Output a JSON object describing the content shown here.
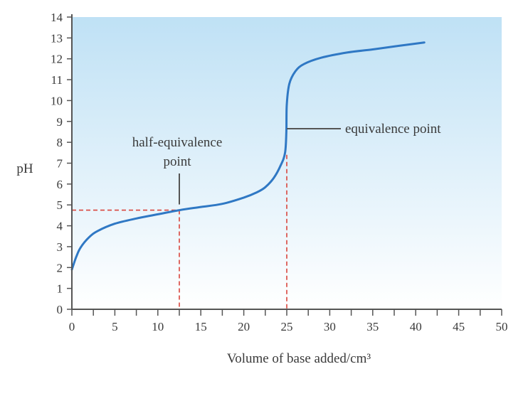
{
  "chart_data": {
    "type": "line",
    "xlabel": "Volume of base added/cm³",
    "ylabel": "pH",
    "xlim": [
      0,
      50
    ],
    "ylim": [
      0,
      14
    ],
    "x_ticks": [
      0,
      5,
      10,
      15,
      20,
      25,
      30,
      35,
      40,
      45,
      50
    ],
    "y_ticks": [
      0,
      1,
      2,
      3,
      4,
      5,
      6,
      7,
      8,
      9,
      10,
      11,
      12,
      13,
      14
    ],
    "series": [
      {
        "points": [
          [
            0,
            1.9
          ],
          [
            0.5,
            2.5
          ],
          [
            1,
            2.95
          ],
          [
            2,
            3.45
          ],
          [
            3,
            3.75
          ],
          [
            5,
            4.1
          ],
          [
            7.5,
            4.35
          ],
          [
            10,
            4.55
          ],
          [
            12.5,
            4.75
          ],
          [
            15,
            4.9
          ],
          [
            17.5,
            5.05
          ],
          [
            20,
            5.35
          ],
          [
            21.5,
            5.6
          ],
          [
            22.5,
            5.85
          ],
          [
            23.5,
            6.3
          ],
          [
            24.3,
            6.9
          ],
          [
            24.8,
            7.5
          ],
          [
            24.95,
            8.5
          ],
          [
            25,
            9.8
          ],
          [
            25.3,
            10.8
          ],
          [
            26,
            11.4
          ],
          [
            27,
            11.75
          ],
          [
            29,
            12.05
          ],
          [
            32,
            12.3
          ],
          [
            35,
            12.45
          ],
          [
            38,
            12.62
          ],
          [
            41,
            12.78
          ]
        ],
        "color": "#2f78c4"
      }
    ],
    "half_equivalence": {
      "x": 12.5,
      "y": 4.75
    },
    "equivalence": {
      "x": 25,
      "y": 7.4
    },
    "annotations": {
      "half_equivalence_line1": "half-equivalence",
      "half_equivalence_line2": "point",
      "equivalence": "equivalence point"
    },
    "colors": {
      "background_top": "#bfe1f5",
      "background_bottom": "#ffffff",
      "curve": "#2f78c4",
      "dashed": "#d9453d",
      "axis": "#555555"
    },
    "grid": false
  }
}
